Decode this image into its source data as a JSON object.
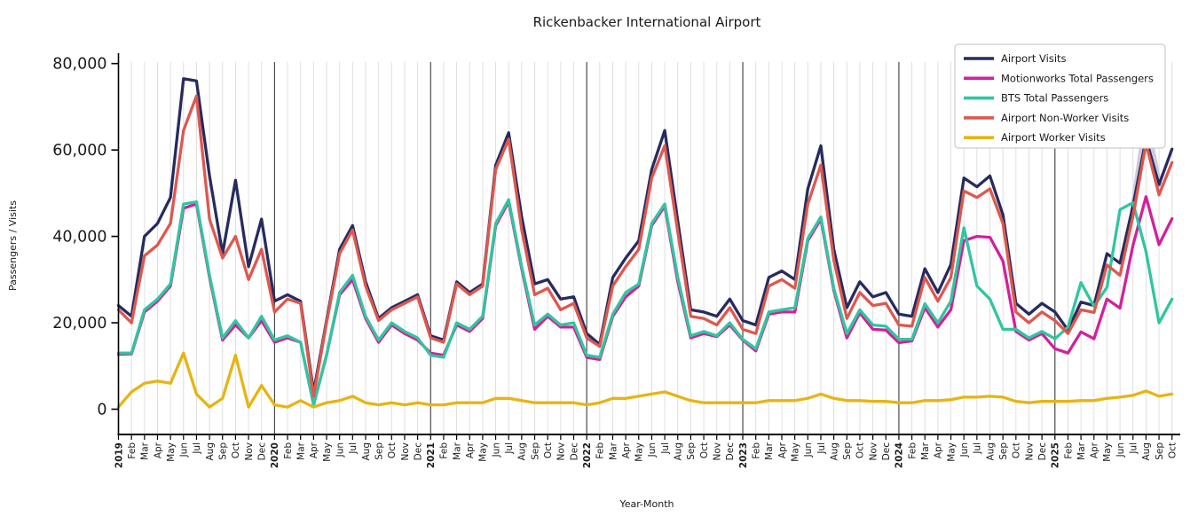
{
  "title": "Rickenbacker International Airport",
  "chart_data": {
    "type": "line",
    "title": "Rickenbacker International Airport",
    "xlabel": "Year-Month",
    "ylabel": "Passengers / Visits",
    "ylim": [
      0,
      80000
    ],
    "yticks": [
      0,
      20000,
      40000,
      60000,
      80000
    ],
    "ytick_labels": [
      "0",
      "20,000",
      "40,000",
      "60,000",
      "80,000"
    ],
    "grid": "vertical monthly gridlines, dark vertical line at each January",
    "legend_position": "top-right",
    "x_labels": [
      "2019",
      "Feb",
      "Mar",
      "Apr",
      "May",
      "Jun",
      "Jul",
      "Aug",
      "Sep",
      "Oct",
      "Nov",
      "Dec",
      "2020",
      "Feb",
      "Mar",
      "Apr",
      "May",
      "Jun",
      "Jul",
      "Aug",
      "Sep",
      "Oct",
      "Nov",
      "Dec",
      "2021",
      "Feb",
      "Mar",
      "Apr",
      "May",
      "Jun",
      "Jul",
      "Aug",
      "Sep",
      "Oct",
      "Nov",
      "Dec",
      "2022",
      "Feb",
      "Mar",
      "Apr",
      "May",
      "Jun",
      "Jul",
      "Aug",
      "Sep",
      "Oct",
      "Nov",
      "Dec",
      "2023",
      "Feb",
      "Mar",
      "Apr",
      "May",
      "Jun",
      "Jul",
      "Aug",
      "Sep",
      "Oct",
      "Nov",
      "Dec",
      "2024",
      "Feb",
      "Mar",
      "Apr",
      "May",
      "Jun",
      "Jul",
      "Aug",
      "Sep",
      "Oct",
      "Nov",
      "Dec",
      "2025",
      "Feb",
      "Mar",
      "Apr",
      "May",
      "Jun",
      "Jul",
      "Aug",
      "Sep",
      "Oct"
    ],
    "year_tick_indices": [
      0,
      12,
      24,
      36,
      48,
      60,
      72
    ],
    "series": [
      {
        "name": "Airport Visits",
        "color": "#262b5f",
        "values": [
          24000,
          21500,
          40000,
          43000,
          49000,
          76500,
          76000,
          54000,
          36000,
          53000,
          33000,
          44000,
          25000,
          26500,
          25000,
          4000,
          20500,
          37000,
          42500,
          29500,
          21000,
          23500,
          25000,
          26500,
          17000,
          16000,
          29500,
          27000,
          29000,
          56500,
          64000,
          44500,
          29000,
          30000,
          25500,
          26000,
          17500,
          15000,
          30500,
          35000,
          39000,
          55500,
          64500,
          43500,
          23000,
          22500,
          21500,
          25500,
          20500,
          19500,
          30500,
          32000,
          30000,
          51000,
          61000,
          37000,
          23500,
          29500,
          26000,
          27000,
          22000,
          21500,
          32500,
          27000,
          33500,
          53500,
          51500,
          54000,
          45000,
          24500,
          22000,
          24500,
          22500,
          18300,
          24800,
          24000,
          36000,
          33800,
          47000,
          62500,
          52000,
          60200
        ]
      },
      {
        "name": "Motionworks Total Passengers",
        "color": "#d1219c",
        "values": [
          12700,
          12800,
          22500,
          25000,
          28500,
          46500,
          47500,
          30500,
          16000,
          19500,
          16500,
          20500,
          15500,
          16500,
          15500,
          1000,
          12500,
          26500,
          30000,
          21000,
          15500,
          19500,
          17500,
          16000,
          13000,
          12500,
          19500,
          18000,
          21000,
          42500,
          48000,
          32500,
          18500,
          21500,
          19000,
          19000,
          12000,
          11500,
          21500,
          26000,
          28500,
          42500,
          47000,
          29500,
          16500,
          17500,
          16800,
          19500,
          16000,
          13500,
          22000,
          22500,
          22500,
          39000,
          44000,
          27500,
          16500,
          22300,
          18500,
          18300,
          15400,
          15800,
          23500,
          19000,
          23000,
          39000,
          40000,
          39800,
          34300,
          18000,
          16000,
          17500,
          14000,
          13000,
          17900,
          16300,
          25500,
          23400,
          37900,
          49200,
          38100,
          44100
        ]
      },
      {
        "name": "BTS Total Passengers",
        "color": "#2fc6a0",
        "values": [
          13000,
          13000,
          23000,
          25500,
          29000,
          47500,
          48000,
          31000,
          16500,
          20500,
          16500,
          21500,
          16000,
          17000,
          15500,
          1000,
          12500,
          27000,
          31000,
          21500,
          16000,
          20000,
          18000,
          16500,
          12500,
          12000,
          20000,
          18500,
          21500,
          43000,
          48500,
          33000,
          19500,
          22000,
          19500,
          20000,
          12500,
          12000,
          22000,
          27000,
          29000,
          43000,
          47500,
          30500,
          17000,
          18000,
          17000,
          20000,
          16200,
          14000,
          22500,
          23000,
          23500,
          39500,
          44500,
          28000,
          17500,
          23000,
          19500,
          19200,
          16200,
          16200,
          24400,
          20000,
          25000,
          42000,
          28500,
          25500,
          18500,
          18500,
          16500,
          18000,
          16300,
          19000,
          29300,
          23800,
          28200,
          46200,
          47800,
          36500,
          20000,
          25500
        ]
      },
      {
        "name": "Airport Non-Worker Visits",
        "color": "#dd584f",
        "values": [
          23000,
          20000,
          35500,
          38000,
          43000,
          64500,
          72500,
          44000,
          35000,
          40000,
          30000,
          37000,
          22500,
          25500,
          24500,
          3000,
          20000,
          36000,
          41500,
          28500,
          20500,
          23000,
          24500,
          26000,
          16500,
          15500,
          29000,
          26500,
          28500,
          55500,
          62500,
          41500,
          26500,
          28000,
          23000,
          24500,
          16500,
          14500,
          28500,
          33000,
          37000,
          53500,
          61000,
          41000,
          21500,
          21000,
          19500,
          23500,
          18500,
          17500,
          28500,
          30000,
          28000,
          47500,
          56500,
          34500,
          21000,
          27000,
          24000,
          24500,
          19500,
          19200,
          30500,
          25000,
          30500,
          50500,
          49000,
          51000,
          43000,
          22500,
          20000,
          22500,
          20500,
          17500,
          23000,
          22400,
          33400,
          31000,
          44700,
          61500,
          49600,
          57100
        ]
      },
      {
        "name": "Airport Worker Visits",
        "color": "#e7b412",
        "values": [
          500,
          4000,
          6000,
          6500,
          6000,
          13000,
          3500,
          500,
          2500,
          12500,
          500,
          5500,
          1000,
          500,
          2000,
          500,
          1500,
          2000,
          3000,
          1500,
          1000,
          1500,
          1000,
          1500,
          1000,
          1000,
          1500,
          1500,
          1500,
          2500,
          2500,
          2000,
          1500,
          1500,
          1500,
          1500,
          1000,
          1500,
          2500,
          2500,
          3000,
          3500,
          4000,
          3000,
          2000,
          1500,
          1500,
          1500,
          1500,
          1500,
          2000,
          2000,
          2000,
          2500,
          3500,
          2500,
          2000,
          2000,
          1800,
          1800,
          1500,
          1500,
          2000,
          2000,
          2200,
          2800,
          2800,
          3000,
          2800,
          1800,
          1500,
          1800,
          1800,
          1800,
          2000,
          2000,
          2500,
          2800,
          3200,
          4200,
          3000,
          3500
        ]
      }
    ],
    "ghost_highlight": {
      "description": "light gray spike behind Airport Visits line at Aug 2025 peak",
      "color": "#ccccdc",
      "start_index": 78,
      "values": [
        46000,
        66500,
        52000
      ]
    }
  }
}
